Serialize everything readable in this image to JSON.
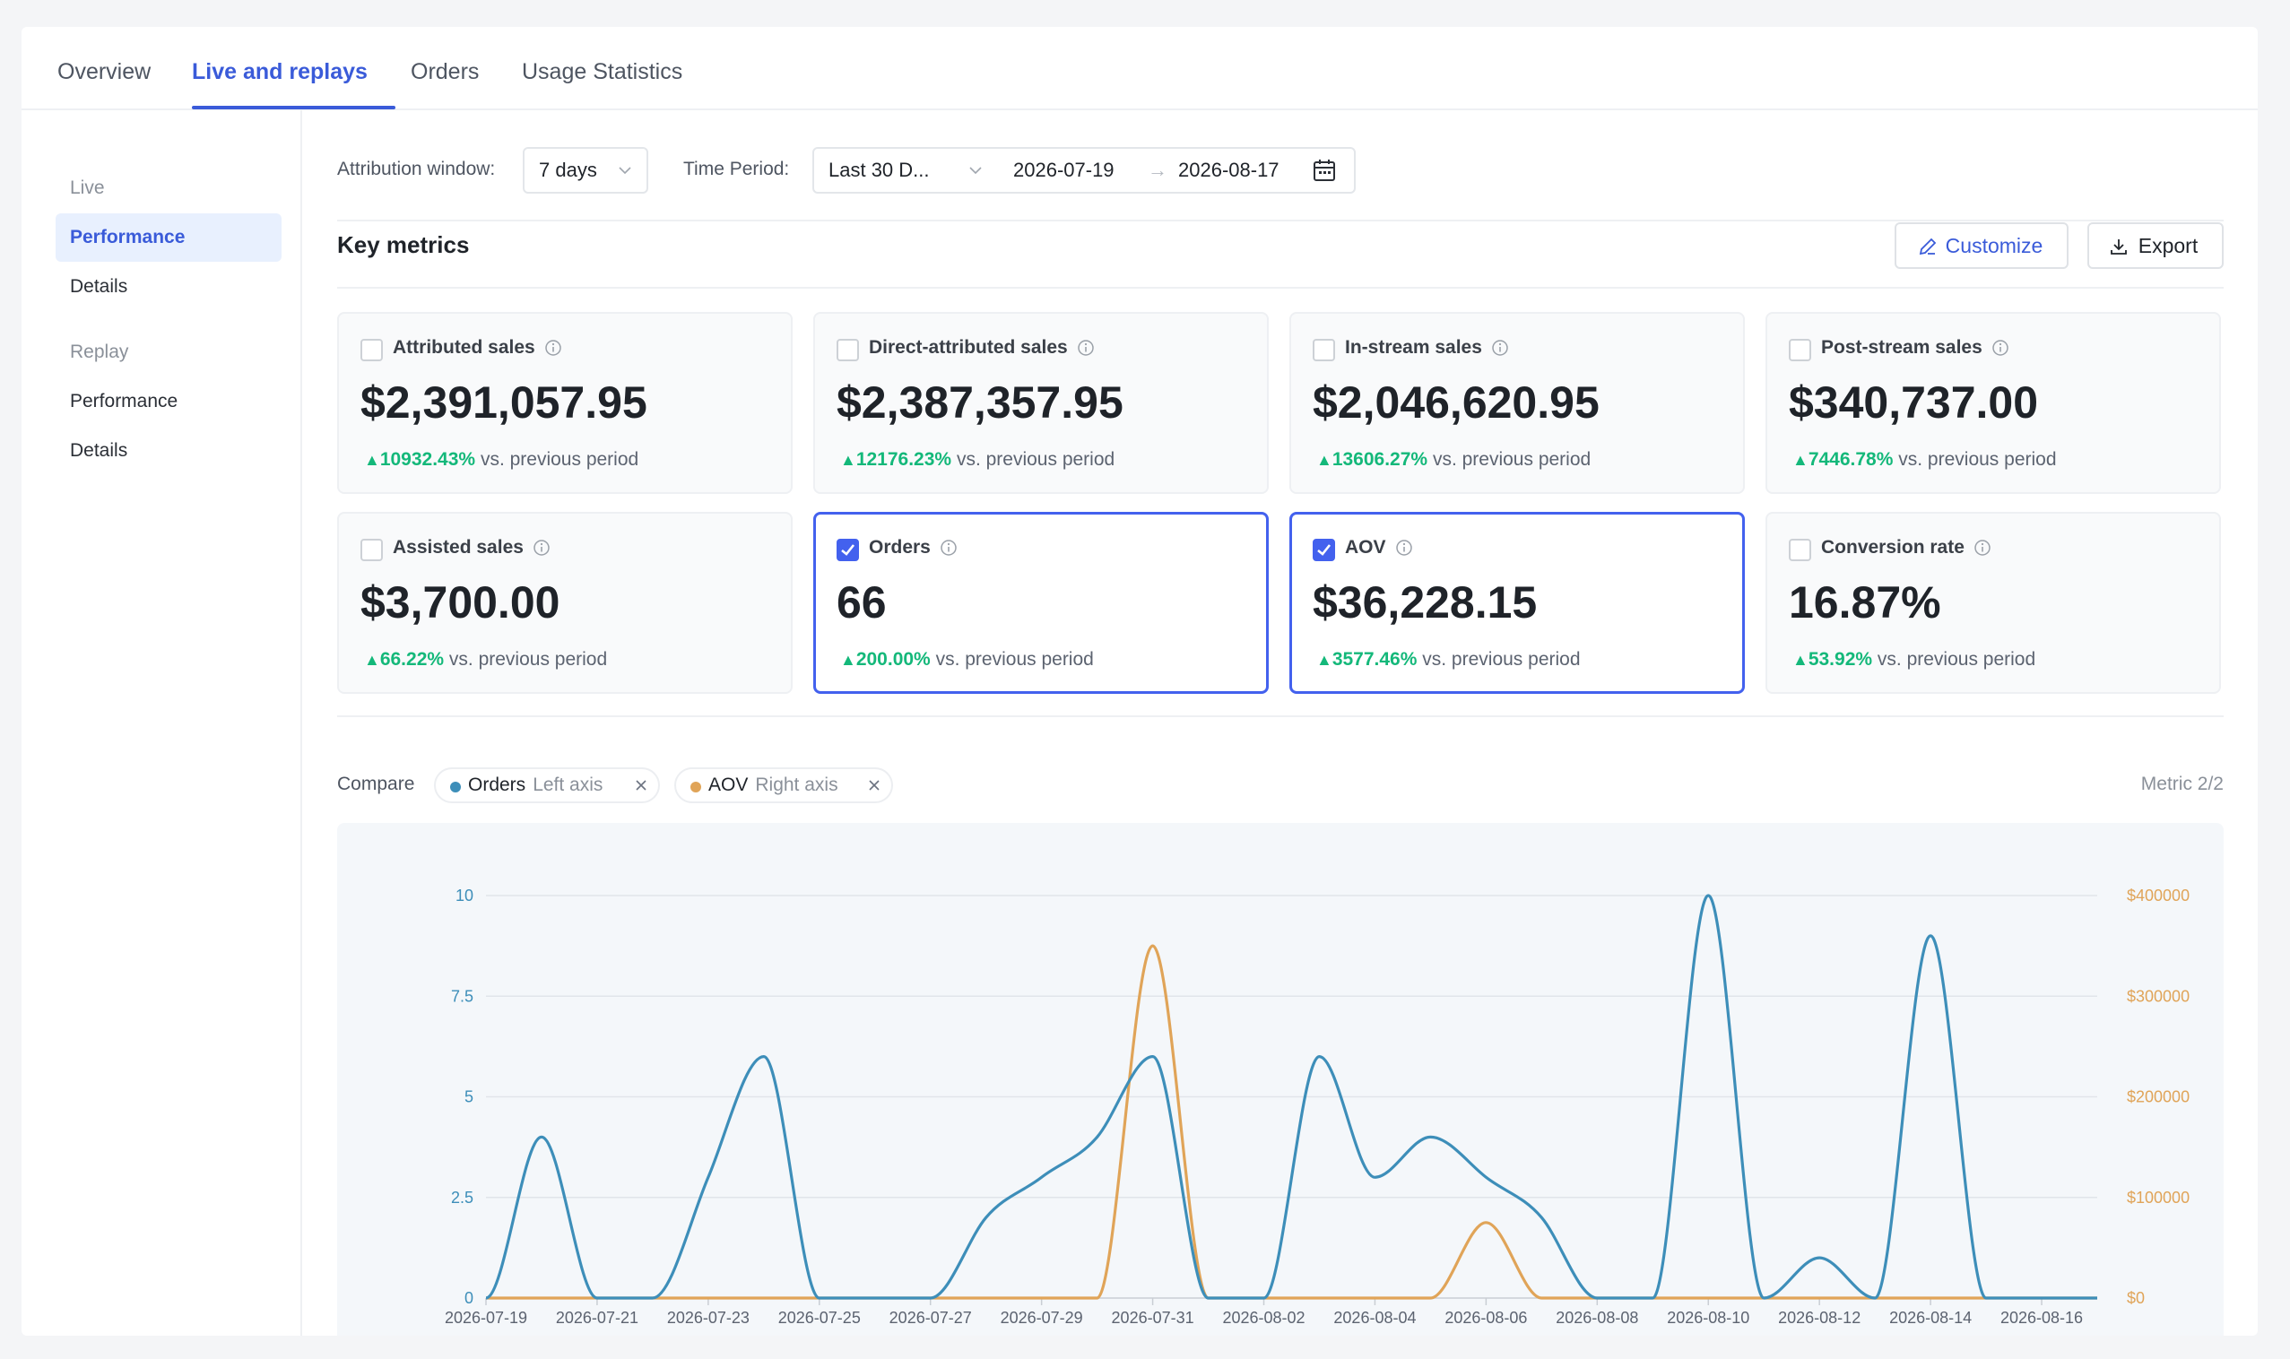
{
  "tabs": [
    {
      "label": "Overview",
      "active": false
    },
    {
      "label": "Live and replays",
      "active": true
    },
    {
      "label": "Orders",
      "active": false
    },
    {
      "label": "Usage Statistics",
      "active": false
    }
  ],
  "sidebar": {
    "groups": [
      {
        "label": "Live",
        "items": [
          {
            "label": "Performance",
            "active": true
          },
          {
            "label": "Details",
            "active": false
          }
        ]
      },
      {
        "label": "Replay",
        "items": [
          {
            "label": "Performance",
            "active": false
          },
          {
            "label": "Details",
            "active": false
          }
        ]
      }
    ]
  },
  "filters": {
    "attribution_label": "Attribution window:",
    "attribution_value": "7 days",
    "period_label": "Time Period:",
    "period_value": "Last 30 D...",
    "date_start": "2026-07-19",
    "date_arrow": "→",
    "date_end": "2026-08-17"
  },
  "key_metrics": {
    "title": "Key metrics",
    "customize_label": "Customize",
    "export_label": "Export",
    "delta_suffix": "vs. previous period",
    "cards": [
      {
        "label": "Attributed sales",
        "value": "$2,391,057.95",
        "delta": "10932.43%",
        "checked": false
      },
      {
        "label": "Direct-attributed sales",
        "value": "$2,387,357.95",
        "delta": "12176.23%",
        "checked": false
      },
      {
        "label": "In-stream sales",
        "value": "$2,046,620.95",
        "delta": "13606.27%",
        "checked": false
      },
      {
        "label": "Post-stream sales",
        "value": "$340,737.00",
        "delta": "7446.78%",
        "checked": false
      },
      {
        "label": "Assisted sales",
        "value": "$3,700.00",
        "delta": "66.22%",
        "checked": false
      },
      {
        "label": "Orders",
        "value": "66",
        "delta": "200.00%",
        "checked": true
      },
      {
        "label": "AOV",
        "value": "$36,228.15",
        "delta": "3577.46%",
        "checked": true
      },
      {
        "label": "Conversion rate",
        "value": "16.87%",
        "delta": "53.92%",
        "checked": false
      }
    ]
  },
  "compare": {
    "label": "Compare",
    "chips": [
      {
        "name": "Orders",
        "axis": "Left axis",
        "color": "#3d8eb9"
      },
      {
        "name": "AOV",
        "axis": "Right axis",
        "color": "#e0a458"
      }
    ],
    "metric_count": "Metric 2/2"
  },
  "colors": {
    "accent": "#3a5bd9",
    "positive": "#14b87a",
    "orders": "#3d8eb9",
    "aov": "#e0a458"
  },
  "chart_data": {
    "type": "line",
    "x": [
      "2026-07-19",
      "2026-07-20",
      "2026-07-21",
      "2026-07-22",
      "2026-07-23",
      "2026-07-24",
      "2026-07-25",
      "2026-07-26",
      "2026-07-27",
      "2026-07-28",
      "2026-07-29",
      "2026-07-30",
      "2026-07-31",
      "2026-08-01",
      "2026-08-02",
      "2026-08-03",
      "2026-08-04",
      "2026-08-05",
      "2026-08-06",
      "2026-08-07",
      "2026-08-08",
      "2026-08-09",
      "2026-08-10",
      "2026-08-11",
      "2026-08-12",
      "2026-08-13",
      "2026-08-14",
      "2026-08-15",
      "2026-08-16",
      "2026-08-17"
    ],
    "x_tick_labels": [
      "2026-07-19",
      "2026-07-21",
      "2026-07-23",
      "2026-07-25",
      "2026-07-27",
      "2026-07-29",
      "2026-07-31",
      "2026-08-02",
      "2026-08-04",
      "2026-08-06",
      "2026-08-08",
      "2026-08-10",
      "2026-08-12",
      "2026-08-14",
      "2026-08-16"
    ],
    "series": [
      {
        "name": "Orders",
        "axis": "left",
        "values": [
          0,
          4,
          0,
          0,
          3,
          6,
          0,
          0,
          0,
          2,
          3,
          4,
          6,
          0,
          0,
          6,
          3,
          4,
          3,
          2,
          0,
          0,
          10,
          0,
          1,
          0,
          9,
          0,
          0,
          0
        ]
      },
      {
        "name": "AOV",
        "axis": "right",
        "values": [
          0,
          0,
          0,
          0,
          0,
          0,
          0,
          0,
          0,
          0,
          0,
          0,
          350000,
          0,
          0,
          0,
          0,
          0,
          75000,
          0,
          0,
          0,
          0,
          0,
          0,
          0,
          0,
          0,
          0,
          0
        ]
      }
    ],
    "left_axis": {
      "ticks": [
        "0",
        "2.5",
        "5",
        "7.5",
        "10"
      ],
      "ylim": [
        0,
        10
      ]
    },
    "right_axis": {
      "ticks": [
        "$0",
        "$100000",
        "$200000",
        "$300000",
        "$400000"
      ],
      "ylim": [
        0,
        400000
      ]
    },
    "grid": true
  }
}
